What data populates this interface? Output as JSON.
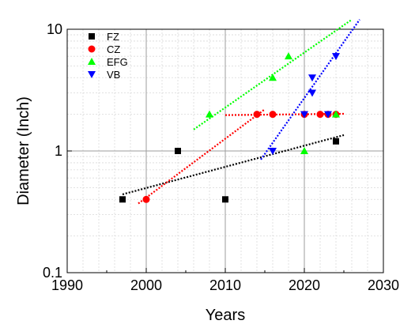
{
  "chart_data": {
    "type": "scatter",
    "title": "",
    "xlabel": "Years",
    "ylabel": "Diameter (Inch)",
    "xlim": [
      1990,
      2030
    ],
    "ylim": [
      0.1,
      10
    ],
    "yscale": "log",
    "grid": true,
    "legend_position": "top-left",
    "x_ticks": [
      "1990",
      "2000",
      "2010",
      "2020",
      "2030"
    ],
    "x_tick_values": [
      1990,
      2000,
      2010,
      2020,
      2030
    ],
    "y_ticks": [
      "0.1",
      "1",
      "10"
    ],
    "y_tick_values": [
      0.1,
      1,
      10
    ],
    "series": [
      {
        "name": "FZ",
        "color": "#000000",
        "marker": "square",
        "points": [
          [
            1997,
            0.4
          ],
          [
            2004,
            1.0
          ],
          [
            2010,
            0.4
          ],
          [
            2024,
            1.2
          ]
        ],
        "trend": [
          [
            1997,
            0.44
          ],
          [
            2025,
            1.35
          ]
        ]
      },
      {
        "name": "CZ",
        "color": "#ff0000",
        "marker": "circle",
        "points": [
          [
            2000,
            0.4
          ],
          [
            2014,
            2.0
          ],
          [
            2016,
            2.0
          ],
          [
            2020,
            2.0
          ],
          [
            2022,
            2.0
          ],
          [
            2023,
            2.0
          ],
          [
            2024,
            2.0
          ]
        ],
        "trend": [
          [
            1999,
            0.37
          ],
          [
            2015,
            2.2
          ]
        ],
        "trend2": [
          [
            2010,
            1.97
          ],
          [
            2025,
            2.02
          ]
        ]
      },
      {
        "name": "EFG",
        "color": "#00ff00",
        "marker": "triangle-up",
        "points": [
          [
            2008,
            2.0
          ],
          [
            2016,
            4.0
          ],
          [
            2018,
            6.0
          ],
          [
            2020,
            1.0
          ],
          [
            2024,
            2.0
          ]
        ],
        "trend": [
          [
            2006,
            1.5
          ],
          [
            2026,
            12.0
          ]
        ]
      },
      {
        "name": "VB",
        "color": "#0000ff",
        "marker": "triangle-down",
        "points": [
          [
            2016,
            1.0
          ],
          [
            2020,
            2.0
          ],
          [
            2021,
            3.0
          ],
          [
            2021,
            4.0
          ],
          [
            2023,
            2.0
          ],
          [
            2024,
            6.0
          ]
        ],
        "trend": [
          [
            2014.5,
            0.85
          ],
          [
            2027,
            12.0
          ]
        ]
      }
    ]
  }
}
